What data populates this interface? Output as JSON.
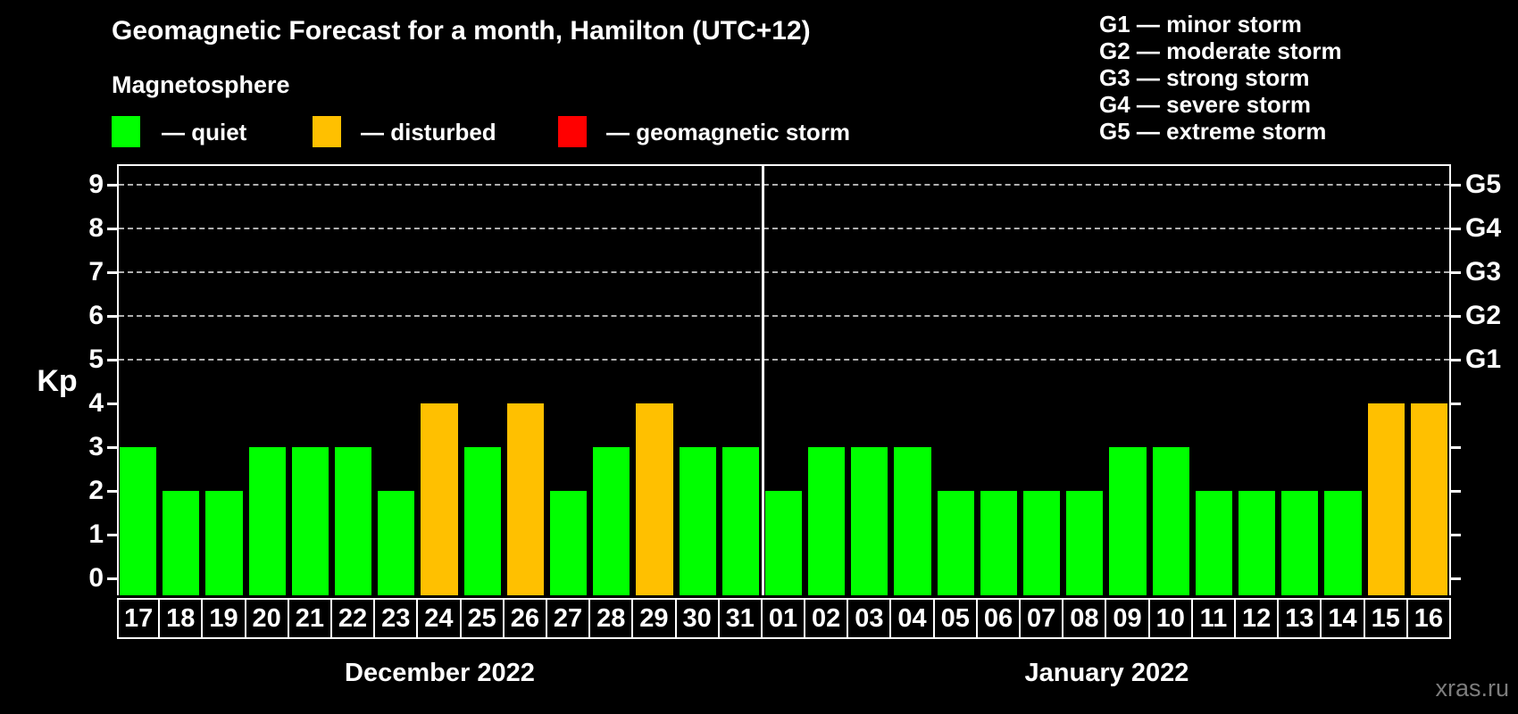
{
  "title": "Geomagnetic Forecast for a month, Hamilton (UTC+12)",
  "subtitle": "Magnetosphere",
  "legend": {
    "items": [
      {
        "name": "quiet",
        "color": "#00ff00",
        "label": "— quiet"
      },
      {
        "name": "disturbed",
        "color": "#ffc000",
        "label": "— disturbed"
      },
      {
        "name": "storm",
        "color": "#ff0000",
        "label": "— geomagnetic storm"
      }
    ]
  },
  "storm_scale_legend": [
    "G1 — minor storm",
    "G2 — moderate storm",
    "G3 — strong storm",
    "G4 — severe storm",
    "G5 — extreme storm"
  ],
  "watermark": "xras.ru",
  "chart_data": {
    "type": "bar",
    "title": "Geomagnetic Forecast for a month, Hamilton (UTC+12)",
    "ylabel": "Kp",
    "ylim": [
      0,
      9.5
    ],
    "yticks": [
      0,
      1,
      2,
      3,
      4,
      5,
      6,
      7,
      8,
      9
    ],
    "gridlines_at": [
      5,
      6,
      7,
      8,
      9
    ],
    "grid": "dashed horizontal at G-storm levels only",
    "legend_position": "top",
    "right_axis": [
      {
        "kp": 5,
        "label": "G1"
      },
      {
        "kp": 6,
        "label": "G2"
      },
      {
        "kp": 7,
        "label": "G3"
      },
      {
        "kp": 8,
        "label": "G4"
      },
      {
        "kp": 9,
        "label": "G5"
      }
    ],
    "status_colors": {
      "quiet": "#00ff00",
      "disturbed": "#ffc000",
      "storm": "#ff0000"
    },
    "groups": [
      {
        "label": "December 2022",
        "bars": [
          {
            "day": "17",
            "kp": 3,
            "status": "quiet"
          },
          {
            "day": "18",
            "kp": 2,
            "status": "quiet"
          },
          {
            "day": "19",
            "kp": 2,
            "status": "quiet"
          },
          {
            "day": "20",
            "kp": 3,
            "status": "quiet"
          },
          {
            "day": "21",
            "kp": 3,
            "status": "quiet"
          },
          {
            "day": "22",
            "kp": 3,
            "status": "quiet"
          },
          {
            "day": "23",
            "kp": 2,
            "status": "quiet"
          },
          {
            "day": "24",
            "kp": 4,
            "status": "disturbed"
          },
          {
            "day": "25",
            "kp": 3,
            "status": "quiet"
          },
          {
            "day": "26",
            "kp": 4,
            "status": "disturbed"
          },
          {
            "day": "27",
            "kp": 2,
            "status": "quiet"
          },
          {
            "day": "28",
            "kp": 3,
            "status": "quiet"
          },
          {
            "day": "29",
            "kp": 4,
            "status": "disturbed"
          },
          {
            "day": "30",
            "kp": 3,
            "status": "quiet"
          },
          {
            "day": "31",
            "kp": 3,
            "status": "quiet"
          }
        ]
      },
      {
        "label": "January 2022",
        "bars": [
          {
            "day": "01",
            "kp": 2,
            "status": "quiet"
          },
          {
            "day": "02",
            "kp": 3,
            "status": "quiet"
          },
          {
            "day": "03",
            "kp": 3,
            "status": "quiet"
          },
          {
            "day": "04",
            "kp": 3,
            "status": "quiet"
          },
          {
            "day": "05",
            "kp": 2,
            "status": "quiet"
          },
          {
            "day": "06",
            "kp": 2,
            "status": "quiet"
          },
          {
            "day": "07",
            "kp": 2,
            "status": "quiet"
          },
          {
            "day": "08",
            "kp": 2,
            "status": "quiet"
          },
          {
            "day": "09",
            "kp": 3,
            "status": "quiet"
          },
          {
            "day": "10",
            "kp": 3,
            "status": "quiet"
          },
          {
            "day": "11",
            "kp": 2,
            "status": "quiet"
          },
          {
            "day": "12",
            "kp": 2,
            "status": "quiet"
          },
          {
            "day": "13",
            "kp": 2,
            "status": "quiet"
          },
          {
            "day": "14",
            "kp": 2,
            "status": "quiet"
          },
          {
            "day": "15",
            "kp": 4,
            "status": "disturbed"
          },
          {
            "day": "16",
            "kp": 4,
            "status": "disturbed"
          }
        ]
      }
    ]
  }
}
